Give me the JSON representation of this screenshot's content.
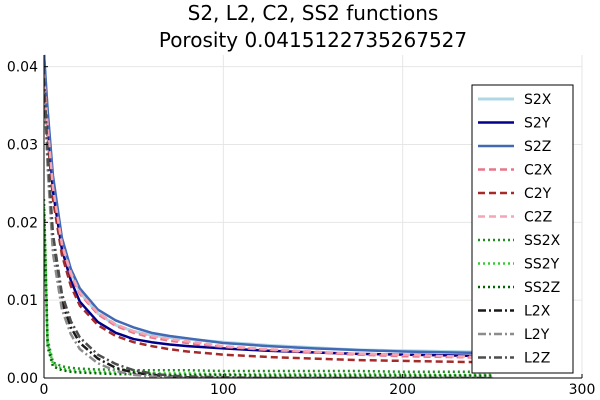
{
  "chart_data": {
    "type": "line",
    "title": "S2, L2, C2, SS2 functions",
    "subtitle": "Porosity 0.0415122735267527",
    "xlabel": "",
    "ylabel": "",
    "xlim": [
      0,
      300
    ],
    "ylim": [
      0,
      0.0415
    ],
    "x_ticks": [
      0,
      100,
      200,
      300
    ],
    "x_tick_labels": [
      "0",
      "100",
      "200",
      "300"
    ],
    "y_ticks": [
      0,
      0.01,
      0.02,
      0.03,
      0.04
    ],
    "y_tick_labels": [
      "0.00",
      "0.01",
      "0.02",
      "0.03",
      "0.04"
    ],
    "grid": true,
    "legend_position": "right",
    "x": [
      0,
      2,
      5,
      10,
      15,
      20,
      30,
      40,
      50,
      60,
      70,
      80,
      100,
      125,
      150,
      175,
      200,
      225,
      250
    ],
    "series": [
      {
        "name": "S2X",
        "color": "#add8e6",
        "dash": "solid",
        "width": 3,
        "values": [
          0.0415,
          0.034,
          0.025,
          0.0175,
          0.0135,
          0.011,
          0.0083,
          0.0068,
          0.006,
          0.0055,
          0.0052,
          0.005,
          0.0046,
          0.0042,
          0.0039,
          0.0036,
          0.0035,
          0.0034,
          0.0033
        ]
      },
      {
        "name": "S2Y",
        "color": "#00008b",
        "dash": "solid",
        "width": 2.5,
        "values": [
          0.0415,
          0.033,
          0.024,
          0.0165,
          0.0125,
          0.0098,
          0.0072,
          0.0058,
          0.005,
          0.0046,
          0.0043,
          0.0041,
          0.0038,
          0.0035,
          0.0033,
          0.0031,
          0.003,
          0.0029,
          0.0028
        ]
      },
      {
        "name": "S2Z",
        "color": "#4169b4",
        "dash": "solid",
        "width": 2.5,
        "values": [
          0.0415,
          0.0345,
          0.026,
          0.018,
          0.014,
          0.0115,
          0.0088,
          0.0074,
          0.0065,
          0.0058,
          0.0054,
          0.0051,
          0.0045,
          0.0041,
          0.0038,
          0.0036,
          0.0034,
          0.0033,
          0.0032
        ]
      },
      {
        "name": "C2X",
        "color": "#e8768a",
        "dash": "dash",
        "width": 2.5,
        "values": [
          0.039,
          0.032,
          0.024,
          0.017,
          0.0132,
          0.0108,
          0.0082,
          0.0067,
          0.0058,
          0.0052,
          0.0048,
          0.0045,
          0.004,
          0.0036,
          0.0033,
          0.003,
          0.0028,
          0.0027,
          0.0026
        ]
      },
      {
        "name": "C2Y",
        "color": "#a52a2a",
        "dash": "dash",
        "width": 2.5,
        "values": [
          0.039,
          0.031,
          0.023,
          0.0158,
          0.0118,
          0.0093,
          0.0068,
          0.0054,
          0.0046,
          0.0041,
          0.0037,
          0.0034,
          0.003,
          0.0027,
          0.0025,
          0.0023,
          0.0022,
          0.0021,
          0.002
        ]
      },
      {
        "name": "C2Z",
        "color": "#f4a6b4",
        "dash": "dash",
        "width": 2.5,
        "values": [
          0.039,
          0.0325,
          0.0245,
          0.0172,
          0.0135,
          0.011,
          0.0084,
          0.0069,
          0.006,
          0.0054,
          0.005,
          0.0047,
          0.0041,
          0.0037,
          0.0034,
          0.0031,
          0.003,
          0.0028,
          0.0027
        ]
      },
      {
        "name": "SS2X",
        "color": "#228b22",
        "dash": "dot",
        "width": 2.5,
        "values": [
          0.023,
          0.005,
          0.002,
          0.0015,
          0.0013,
          0.0012,
          0.0011,
          0.0011,
          0.001,
          0.001,
          0.001,
          0.001,
          0.0009,
          0.0009,
          0.0009,
          0.0009,
          0.0008,
          0.0008,
          0.0008
        ]
      },
      {
        "name": "SS2Y",
        "color": "#32cd32",
        "dash": "dot",
        "width": 2.5,
        "values": [
          0.022,
          0.0045,
          0.0018,
          0.0012,
          0.001,
          0.0009,
          0.0008,
          0.0007,
          0.0007,
          0.0006,
          0.0006,
          0.0006,
          0.0005,
          0.0005,
          0.0005,
          0.0005,
          0.0005,
          0.0004,
          0.0004
        ]
      },
      {
        "name": "SS2Z",
        "color": "#006400",
        "dash": "dot",
        "width": 2.5,
        "values": [
          0.021,
          0.004,
          0.0015,
          0.001,
          0.0008,
          0.0007,
          0.0006,
          0.0005,
          0.0005,
          0.0004,
          0.0004,
          0.0004,
          0.0004,
          0.0003,
          0.0003,
          0.0003,
          0.0003,
          0.0003,
          0.0003
        ]
      },
      {
        "name": "L2X",
        "color": "#1a1a1a",
        "dash": "dashdot",
        "width": 2.5,
        "values": [
          0.0385,
          0.028,
          0.017,
          0.0098,
          0.0065,
          0.0045,
          0.0025,
          0.0013,
          0.0007,
          0.0004,
          0.0002,
          0.0001,
          0.0,
          0.0,
          0.0,
          0.0,
          0.0,
          0.0,
          0.0
        ]
      },
      {
        "name": "L2Y",
        "color": "#8c8c8c",
        "dash": "dashdot",
        "width": 2.5,
        "values": [
          0.0385,
          0.027,
          0.016,
          0.0088,
          0.0056,
          0.0037,
          0.0019,
          0.0009,
          0.0004,
          0.0002,
          0.0001,
          0.0,
          0.0,
          0.0,
          0.0,
          0.0,
          0.0,
          0.0,
          0.0
        ]
      },
      {
        "name": "L2Z",
        "color": "#4d4d4d",
        "dash": "dashdot",
        "width": 2.5,
        "values": [
          0.0385,
          0.029,
          0.0185,
          0.0108,
          0.0073,
          0.0052,
          0.003,
          0.0018,
          0.001,
          0.0006,
          0.0003,
          0.0002,
          0.0001,
          0.0,
          0.0,
          0.0,
          0.0,
          0.0,
          0.0
        ]
      }
    ]
  }
}
